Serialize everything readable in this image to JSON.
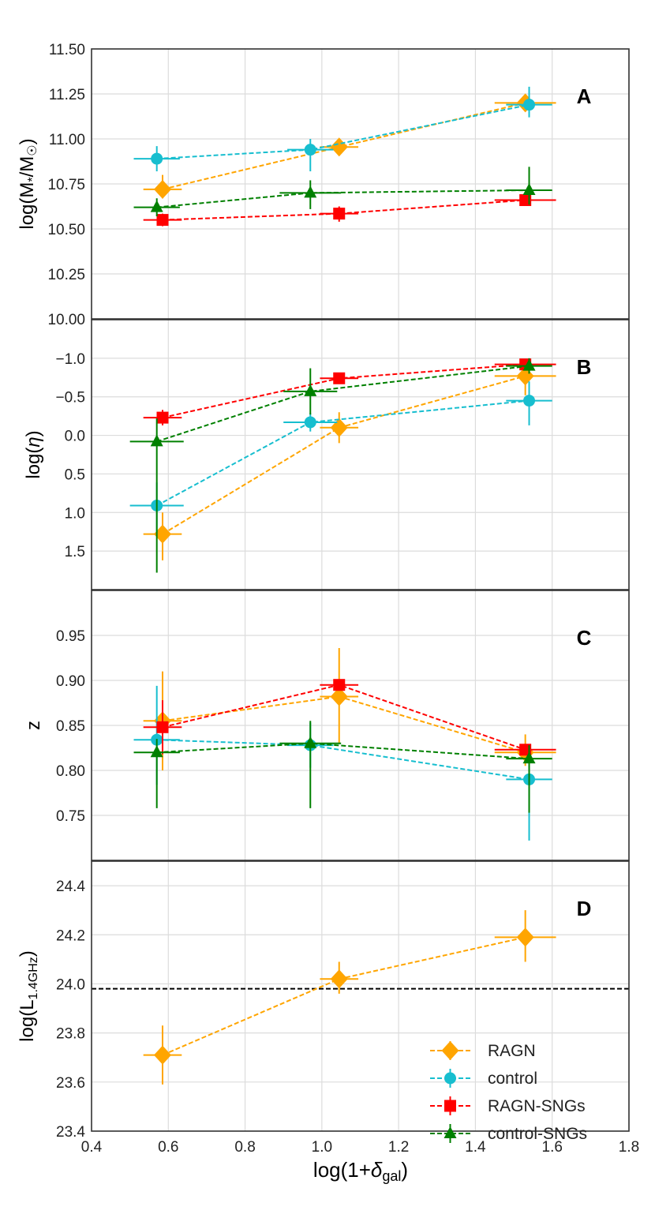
{
  "chart_data": {
    "type": "scatter",
    "x": {
      "label": "log(1+δ_gal)",
      "label_main": "log(1+",
      "label_delta": "δ",
      "label_sub": "gal",
      "label_close": ")",
      "lim": [
        0.4,
        1.8
      ],
      "ticks": [
        0.4,
        0.6,
        0.8,
        1.0,
        1.2,
        1.4,
        1.6,
        1.8
      ],
      "tick_labels": [
        "0.4",
        "0.6",
        "0.8",
        "1.0",
        "1.2",
        "1.4",
        "1.6",
        "1.8"
      ]
    },
    "legend": {
      "placement": "lower-right",
      "entries": [
        {
          "name": "RAGN",
          "color": "#FFA500",
          "marker": "diamond"
        },
        {
          "name": "control",
          "color": "#17BECF",
          "marker": "circle"
        },
        {
          "name": "RAGN-SNGs",
          "color": "#FF0000",
          "marker": "square"
        },
        {
          "name": "control-SNGs",
          "color": "#008000",
          "marker": "triangle"
        }
      ]
    },
    "panels": [
      {
        "id": "A",
        "letter": "A",
        "ylabel": "log(M*/M☉)",
        "ylim": [
          10.0,
          11.5
        ],
        "inverted": false,
        "yticks": [
          10.0,
          10.25,
          10.5,
          10.75,
          11.0,
          11.25,
          11.5
        ],
        "ytick_labels": [
          "10.00",
          "10.25",
          "10.50",
          "10.75",
          "11.00",
          "11.25",
          "11.50"
        ],
        "series": [
          {
            "name": "RAGN",
            "color": "#FFA500",
            "marker": "diamond",
            "points": [
              {
                "x": 0.585,
                "y": 10.72,
                "xerr": [
                  0.05,
                  0.05
                ],
                "yerr": [
                  0.05,
                  0.08
                ]
              },
              {
                "x": 1.045,
                "y": 10.955,
                "xerr": [
                  0.05,
                  0.05
                ],
                "yerr": [
                  0.045,
                  0.045
                ]
              },
              {
                "x": 1.53,
                "y": 11.2,
                "xerr": [
                  0.08,
                  0.08
                ],
                "yerr": [
                  0.03,
                  0.03
                ]
              }
            ]
          },
          {
            "name": "control",
            "color": "#17BECF",
            "marker": "circle",
            "points": [
              {
                "x": 0.57,
                "y": 10.89,
                "xerr": [
                  0.06,
                  0.06
                ],
                "yerr": [
                  0.07,
                  0.07
                ]
              },
              {
                "x": 0.97,
                "y": 10.94,
                "xerr": [
                  0.06,
                  0.06
                ],
                "yerr": [
                  0.12,
                  0.06
                ]
              },
              {
                "x": 1.54,
                "y": 11.19,
                "xerr": [
                  0.06,
                  0.06
                ],
                "yerr": [
                  0.07,
                  0.1
                ]
              }
            ]
          },
          {
            "name": "RAGN-SNGs",
            "color": "#FF0000",
            "marker": "square",
            "points": [
              {
                "x": 0.585,
                "y": 10.55,
                "xerr": [
                  0.05,
                  0.05
                ],
                "yerr": [
                  0.035,
                  0.035
                ]
              },
              {
                "x": 1.045,
                "y": 10.585,
                "xerr": [
                  0.05,
                  0.05
                ],
                "yerr": [
                  0.045,
                  0.04
                ]
              },
              {
                "x": 1.53,
                "y": 10.66,
                "xerr": [
                  0.08,
                  0.08
                ],
                "yerr": [
                  0.025,
                  0.025
                ]
              }
            ]
          },
          {
            "name": "control-SNGs",
            "color": "#008000",
            "marker": "triangle",
            "points": [
              {
                "x": 0.57,
                "y": 10.62,
                "xerr": [
                  0.06,
                  0.06
                ],
                "yerr": [
                  0.05,
                  0.05
                ]
              },
              {
                "x": 0.97,
                "y": 10.7,
                "xerr": [
                  0.08,
                  0.08
                ],
                "yerr": [
                  0.09,
                  0.07
                ]
              },
              {
                "x": 1.54,
                "y": 10.715,
                "xerr": [
                  0.06,
                  0.06
                ],
                "yerr": [
                  0.08,
                  0.13
                ]
              }
            ]
          }
        ]
      },
      {
        "id": "B",
        "letter": "B",
        "ylabel": "log(η)",
        "ylim": [
          2.0,
          -1.5
        ],
        "inverted": true,
        "yticks": [
          1.5,
          1.0,
          0.5,
          0.0,
          -0.5,
          -1.0
        ],
        "ytick_labels": [
          "1.5",
          "1.0",
          "0.5",
          "0.0",
          "−0.5",
          "−1.0"
        ],
        "series": [
          {
            "name": "RAGN",
            "color": "#FFA500",
            "marker": "diamond",
            "points": [
              {
                "x": 0.585,
                "y": 1.28,
                "xerr": [
                  0.05,
                  0.05
                ],
                "yerr": [
                  0.28,
                  0.34
                ]
              },
              {
                "x": 1.045,
                "y": -0.1,
                "xerr": [
                  0.05,
                  0.05
                ],
                "yerr": [
                  0.2,
                  0.2
                ]
              },
              {
                "x": 1.53,
                "y": -0.77,
                "xerr": [
                  0.08,
                  0.08
                ],
                "yerr": [
                  0.2,
                  0.25
                ]
              }
            ]
          },
          {
            "name": "control",
            "color": "#17BECF",
            "marker": "circle",
            "points": [
              {
                "x": 0.57,
                "y": 0.91,
                "xerr": [
                  0.07,
                  0.07
                ],
                "yerr": [
                  0.3,
                  0.35
                ]
              },
              {
                "x": 0.97,
                "y": -0.17,
                "xerr": [
                  0.07,
                  0.07
                ],
                "yerr": [
                  0.12,
                  0.12
                ]
              },
              {
                "x": 1.54,
                "y": -0.45,
                "xerr": [
                  0.06,
                  0.06
                ],
                "yerr": [
                  0.25,
                  0.32
                ]
              }
            ]
          },
          {
            "name": "RAGN-SNGs",
            "color": "#FF0000",
            "marker": "square",
            "points": [
              {
                "x": 0.585,
                "y": -0.23,
                "xerr": [
                  0.05,
                  0.05
                ],
                "yerr": [
                  0.1,
                  0.1
                ]
              },
              {
                "x": 1.045,
                "y": -0.74,
                "xerr": [
                  0.05,
                  0.05
                ],
                "yerr": [
                  0.05,
                  0.05
                ]
              },
              {
                "x": 1.53,
                "y": -0.92,
                "xerr": [
                  0.08,
                  0.08
                ],
                "yerr": [
                  0.05,
                  0.05
                ]
              }
            ]
          },
          {
            "name": "control-SNGs",
            "color": "#008000",
            "marker": "triangle",
            "points": [
              {
                "x": 0.57,
                "y": 0.08,
                "xerr": [
                  0.07,
                  0.07
                ],
                "yerr": [
                  0.3,
                  1.7
                ]
              },
              {
                "x": 0.97,
                "y": -0.57,
                "xerr": [
                  0.07,
                  0.07
                ],
                "yerr": [
                  0.3,
                  0.3
                ]
              },
              {
                "x": 1.54,
                "y": -0.9,
                "xerr": [
                  0.06,
                  0.06
                ],
                "yerr": [
                  0.1,
                  0.1
                ]
              }
            ]
          }
        ]
      },
      {
        "id": "C",
        "letter": "C",
        "ylabel": "z",
        "ylim": [
          0.7,
          1.0
        ],
        "inverted": false,
        "yticks": [
          0.75,
          0.8,
          0.85,
          0.9,
          0.95
        ],
        "ytick_labels": [
          "0.75",
          "0.80",
          "0.85",
          "0.90",
          "0.95"
        ],
        "series": [
          {
            "name": "RAGN",
            "color": "#FFA500",
            "marker": "diamond",
            "points": [
              {
                "x": 0.585,
                "y": 0.855,
                "xerr": [
                  0.05,
                  0.05
                ],
                "yerr": [
                  0.055,
                  0.055
                ]
              },
              {
                "x": 1.045,
                "y": 0.882,
                "xerr": [
                  0.05,
                  0.05
                ],
                "yerr": [
                  0.052,
                  0.054
                ]
              },
              {
                "x": 1.53,
                "y": 0.82,
                "xerr": [
                  0.08,
                  0.08
                ],
                "yerr": [
                  0.015,
                  0.02
                ]
              }
            ]
          },
          {
            "name": "control",
            "color": "#17BECF",
            "marker": "circle",
            "points": [
              {
                "x": 0.57,
                "y": 0.834,
                "xerr": [
                  0.06,
                  0.06
                ],
                "yerr": [
                  0.05,
                  0.06
                ]
              },
              {
                "x": 0.97,
                "y": 0.828,
                "xerr": [
                  0.06,
                  0.06
                ],
                "yerr": [
                  0.025,
                  0.025
                ]
              },
              {
                "x": 1.54,
                "y": 0.79,
                "xerr": [
                  0.06,
                  0.06
                ],
                "yerr": [
                  0.068,
                  0.025
                ]
              }
            ]
          },
          {
            "name": "RAGN-SNGs",
            "color": "#FF0000",
            "marker": "square",
            "points": [
              {
                "x": 0.585,
                "y": 0.848,
                "xerr": [
                  0.05,
                  0.05
                ],
                "yerr": [
                  0.03,
                  0.03
                ]
              },
              {
                "x": 1.045,
                "y": 0.895,
                "xerr": [
                  0.05,
                  0.05
                ],
                "yerr": [
                  0.005,
                  0.005
                ]
              },
              {
                "x": 1.53,
                "y": 0.823,
                "xerr": [
                  0.08,
                  0.08
                ],
                "yerr": [
                  0.005,
                  0.005
                ]
              }
            ]
          },
          {
            "name": "control-SNGs",
            "color": "#008000",
            "marker": "triangle",
            "points": [
              {
                "x": 0.57,
                "y": 0.82,
                "xerr": [
                  0.06,
                  0.06
                ],
                "yerr": [
                  0.062,
                  0.015
                ]
              },
              {
                "x": 0.97,
                "y": 0.83,
                "xerr": [
                  0.08,
                  0.08
                ],
                "yerr": [
                  0.072,
                  0.025
                ]
              },
              {
                "x": 1.54,
                "y": 0.813,
                "xerr": [
                  0.06,
                  0.06
                ],
                "yerr": [
                  0.06,
                  0.015
                ]
              }
            ]
          }
        ]
      },
      {
        "id": "D",
        "letter": "D",
        "ylabel": "log(L1.4GHz)",
        "ylim": [
          23.4,
          24.5
        ],
        "inverted": false,
        "yticks": [
          23.4,
          23.6,
          23.8,
          24.0,
          24.2,
          24.4
        ],
        "ytick_labels": [
          "23.4",
          "23.6",
          "23.8",
          "24.0",
          "24.2",
          "24.4"
        ],
        "hline": 23.98,
        "series": [
          {
            "name": "RAGN",
            "color": "#FFA500",
            "marker": "diamond",
            "points": [
              {
                "x": 0.585,
                "y": 23.71,
                "xerr": [
                  0.05,
                  0.05
                ],
                "yerr": [
                  0.12,
                  0.12
                ]
              },
              {
                "x": 1.045,
                "y": 24.02,
                "xerr": [
                  0.05,
                  0.05
                ],
                "yerr": [
                  0.06,
                  0.07
                ]
              },
              {
                "x": 1.53,
                "y": 24.19,
                "xerr": [
                  0.08,
                  0.08
                ],
                "yerr": [
                  0.1,
                  0.11
                ]
              }
            ]
          }
        ]
      }
    ]
  }
}
